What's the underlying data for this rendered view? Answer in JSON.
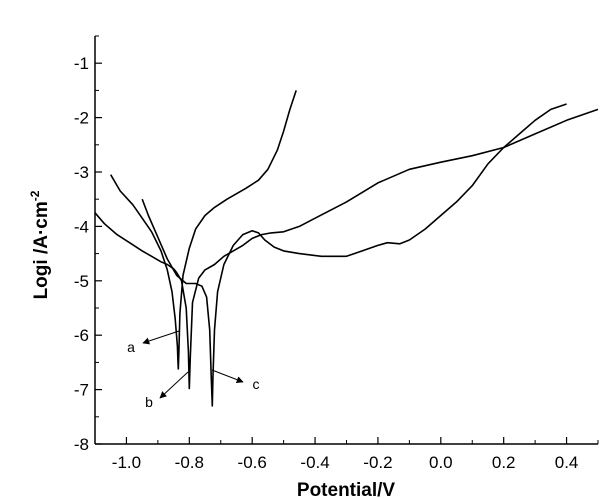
{
  "chart_data": {
    "type": "line",
    "title": "",
    "xlabel": "Potential/V",
    "ylabel": "Logi /A·cm",
    "ylabel_superscript": "-2",
    "xlim": [
      -1.1,
      0.5
    ],
    "ylim": [
      -8,
      -0.5
    ],
    "grid": false,
    "legend": "none",
    "x_ticks": [
      -1.0,
      -0.8,
      -0.6,
      -0.4,
      -0.2,
      0.0,
      0.2,
      0.4
    ],
    "x_tick_labels": [
      "-1.0",
      "-0.8",
      "-0.6",
      "-0.4",
      "-0.2",
      "0.0",
      "0.2",
      "0.4"
    ],
    "y_ticks": [
      -8,
      -7,
      -6,
      -5,
      -4,
      -3,
      -2,
      -1
    ],
    "y_tick_labels": [
      "-8",
      "-7",
      "-6",
      "-5",
      "-4",
      "-3",
      "-2",
      "-1"
    ],
    "line_color": "#000000",
    "annotations": [
      {
        "text": "a",
        "series": "a"
      },
      {
        "text": "b",
        "series": "b"
      },
      {
        "text": "c",
        "series": "c"
      }
    ],
    "series": [
      {
        "id": "a",
        "x": [
          -1.05,
          -1.02,
          -0.98,
          -0.95,
          -0.92,
          -0.89,
          -0.87,
          -0.855,
          -0.845,
          -0.838,
          -0.836,
          -0.835,
          -0.833,
          -0.83,
          -0.82,
          -0.8,
          -0.78,
          -0.75,
          -0.72,
          -0.68,
          -0.62,
          -0.58,
          -0.55,
          -0.52,
          -0.5,
          -0.48,
          -0.46
        ],
        "y": [
          -3.05,
          -3.35,
          -3.6,
          -3.85,
          -4.1,
          -4.45,
          -4.8,
          -5.2,
          -5.7,
          -6.2,
          -6.5,
          -6.62,
          -6.3,
          -5.6,
          -4.9,
          -4.4,
          -4.05,
          -3.8,
          -3.65,
          -3.5,
          -3.3,
          -3.15,
          -2.95,
          -2.6,
          -2.25,
          -1.85,
          -1.5
        ]
      },
      {
        "id": "b",
        "x": [
          -1.1,
          -1.07,
          -1.03,
          -0.99,
          -0.95,
          -0.92,
          -0.89,
          -0.87,
          -0.85,
          -0.84,
          -0.825,
          -0.81,
          -0.803,
          -0.8,
          -0.797,
          -0.79,
          -0.77,
          -0.75,
          -0.72,
          -0.69,
          -0.66,
          -0.63,
          -0.6,
          -0.57,
          -0.54,
          -0.5,
          -0.45,
          -0.4,
          -0.3,
          -0.2,
          -0.1,
          0.0,
          0.1,
          0.2,
          0.3,
          0.4,
          0.5
        ],
        "y": [
          -3.75,
          -3.95,
          -4.15,
          -4.3,
          -4.45,
          -4.55,
          -4.65,
          -4.7,
          -4.78,
          -4.85,
          -5.0,
          -5.5,
          -6.3,
          -6.98,
          -6.4,
          -5.4,
          -4.95,
          -4.8,
          -4.7,
          -4.55,
          -4.45,
          -4.35,
          -4.22,
          -4.15,
          -4.12,
          -4.1,
          -4.0,
          -3.85,
          -3.55,
          -3.2,
          -2.95,
          -2.82,
          -2.7,
          -2.55,
          -2.3,
          -2.05,
          -1.85
        ]
      },
      {
        "id": "c",
        "x": [
          -0.95,
          -0.93,
          -0.9,
          -0.87,
          -0.84,
          -0.81,
          -0.78,
          -0.76,
          -0.745,
          -0.735,
          -0.73,
          -0.727,
          -0.725,
          -0.72,
          -0.71,
          -0.69,
          -0.66,
          -0.63,
          -0.6,
          -0.58,
          -0.56,
          -0.53,
          -0.5,
          -0.45,
          -0.38,
          -0.3,
          -0.25,
          -0.2,
          -0.17,
          -0.13,
          -0.1,
          -0.05,
          0.0,
          0.05,
          0.1,
          0.15,
          0.2,
          0.25,
          0.3,
          0.35,
          0.4
        ],
        "y": [
          -3.5,
          -3.8,
          -4.2,
          -4.6,
          -4.9,
          -5.05,
          -5.05,
          -5.1,
          -5.3,
          -5.9,
          -6.8,
          -7.3,
          -6.8,
          -5.9,
          -5.2,
          -4.7,
          -4.35,
          -4.15,
          -4.08,
          -4.12,
          -4.25,
          -4.38,
          -4.45,
          -4.5,
          -4.55,
          -4.55,
          -4.45,
          -4.35,
          -4.3,
          -4.32,
          -4.25,
          -4.05,
          -3.8,
          -3.55,
          -3.25,
          -2.85,
          -2.55,
          -2.3,
          -2.05,
          -1.85,
          -1.75
        ]
      }
    ]
  }
}
